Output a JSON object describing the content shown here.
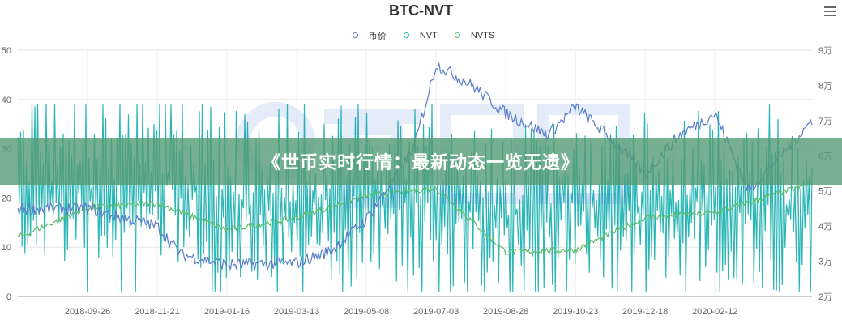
{
  "header": {
    "title": "BTC-NVT"
  },
  "banner": {
    "text": "《世币实时行情：最新动态一览无遗》"
  },
  "chart_data": {
    "type": "line",
    "title": "BTC-NVT",
    "legend_position": "top-center",
    "grid": true,
    "categories_shown": [
      "2018-09-26",
      "2018-11-21",
      "2019-01-16",
      "2019-03-13",
      "2019-05-08",
      "2019-07-03",
      "2019-08-28",
      "2019-10-23",
      "2019-12-18",
      "2020-02-12"
    ],
    "y_left": {
      "ticks": [
        "0",
        "10",
        "20",
        "30",
        "40",
        "50"
      ],
      "range": [
        0,
        50
      ]
    },
    "y_right": {
      "ticks": [
        "2万",
        "3万",
        "4万",
        "5万",
        "6万",
        "7万",
        "8万",
        "9万"
      ],
      "range": [
        20000,
        90000
      ]
    },
    "legend": [
      "币价",
      "NVT",
      "NVTS"
    ],
    "colors": {
      "price": "#5b7ec9",
      "nvt": "#2ab6b6",
      "nvts": "#5cbd6a"
    },
    "series": [
      {
        "name": "币价",
        "axis": "right",
        "values_by_date": [
          [
            "2018-09-26",
            45000
          ],
          [
            "2018-11-21",
            40000
          ],
          [
            "2018-12-10",
            32000
          ],
          [
            "2019-01-16",
            29000
          ],
          [
            "2019-03-13",
            29500
          ],
          [
            "2019-04-10",
            33000
          ],
          [
            "2019-05-08",
            42000
          ],
          [
            "2019-06-15",
            62000
          ],
          [
            "2019-07-03",
            86000
          ],
          [
            "2019-08-01",
            80000
          ],
          [
            "2019-08-28",
            72000
          ],
          [
            "2019-10-01",
            66000
          ],
          [
            "2019-10-23",
            74000
          ],
          [
            "2019-11-20",
            65000
          ],
          [
            "2019-12-18",
            55000
          ],
          [
            "2020-01-15",
            66000
          ],
          [
            "2020-02-12",
            72000
          ],
          [
            "2020-03-10",
            50000
          ],
          [
            "2020-04-10",
            62000
          ],
          [
            "2020-04-30",
            70000
          ]
        ]
      },
      {
        "name": "NVT",
        "axis": "left",
        "values_by_date": [
          [
            "2018-09-26",
            22
          ],
          [
            "2018-11-21",
            25
          ],
          [
            "2019-01-16",
            18
          ],
          [
            "2019-03-13",
            19
          ],
          [
            "2019-05-08",
            21
          ],
          [
            "2019-07-03",
            19
          ],
          [
            "2019-08-28",
            16
          ],
          [
            "2019-10-23",
            20
          ],
          [
            "2019-12-18",
            17
          ],
          [
            "2020-02-12",
            21
          ],
          [
            "2020-04-30",
            17
          ]
        ],
        "range_observed": [
          1,
          39
        ]
      },
      {
        "name": "NVTS",
        "axis": "left",
        "values_by_date": [
          [
            "2018-08-01",
            12
          ],
          [
            "2018-09-26",
            18
          ],
          [
            "2018-11-21",
            19
          ],
          [
            "2019-01-16",
            13.5
          ],
          [
            "2019-03-13",
            16
          ],
          [
            "2019-05-08",
            20.5
          ],
          [
            "2019-07-03",
            22
          ],
          [
            "2019-08-28",
            9
          ],
          [
            "2019-10-23",
            9.5
          ],
          [
            "2019-12-18",
            16
          ],
          [
            "2020-02-12",
            17
          ],
          [
            "2020-04-30",
            23
          ]
        ]
      }
    ]
  }
}
